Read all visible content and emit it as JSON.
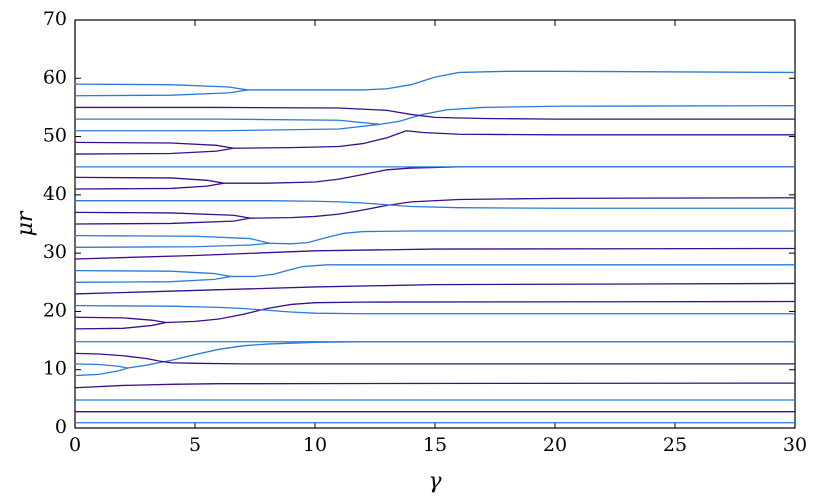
{
  "chart_data": {
    "type": "line",
    "xlabel": "γ",
    "ylabel": "μr",
    "xlim": [
      0,
      30
    ],
    "ylim": [
      0,
      70
    ],
    "xticks": [
      0,
      5,
      10,
      15,
      20,
      25,
      30
    ],
    "yticks": [
      0,
      10,
      20,
      30,
      40,
      50,
      60,
      70
    ],
    "grid": false,
    "series": [
      {
        "color": "#2a7bd8",
        "x": [
          0,
          30
        ],
        "values": [
          0.9,
          0.9
        ]
      },
      {
        "color": "#3a0e8c",
        "x": [
          0,
          30
        ],
        "values": [
          2.8,
          2.8
        ]
      },
      {
        "color": "#2a7bd8",
        "x": [
          0,
          30
        ],
        "values": [
          4.8,
          4.8
        ]
      },
      {
        "color": "#3a0e8c",
        "x": [
          0,
          2,
          4,
          6,
          30
        ],
        "values": [
          6.9,
          7.3,
          7.5,
          7.6,
          7.7
        ]
      },
      {
        "color": "#2a7bd8",
        "x": [
          0,
          1,
          1.8,
          2.2
        ],
        "values": [
          11,
          10.9,
          10.6,
          10.3
        ]
      },
      {
        "color": "#2a7bd8",
        "x": [
          0,
          1,
          1.8,
          2.2,
          3,
          4,
          5,
          6,
          7,
          8,
          10,
          12,
          30
        ],
        "values": [
          9,
          9.2,
          9.8,
          10.3,
          10.8,
          11.6,
          12.6,
          13.5,
          14.1,
          14.4,
          14.7,
          14.8,
          14.8
        ]
      },
      {
        "color": "#3a0e8c",
        "x": [
          0,
          1,
          2,
          3,
          3.5,
          4,
          5,
          7,
          30
        ],
        "values": [
          12.8,
          12.7,
          12.4,
          11.9,
          11.5,
          11.2,
          11.1,
          11.0,
          11.0
        ]
      },
      {
        "color": "#2a7bd8",
        "x": [
          0,
          30
        ],
        "values": [
          14.8,
          14.8
        ]
      },
      {
        "color": "#3a0e8c",
        "x": [
          0,
          2,
          3.2,
          3.8
        ],
        "values": [
          19,
          18.9,
          18.5,
          18.1
        ]
      },
      {
        "color": "#3a0e8c",
        "x": [
          0,
          2,
          3.2,
          3.8,
          5,
          6,
          7,
          8,
          9,
          10,
          12,
          30
        ],
        "values": [
          17,
          17.1,
          17.6,
          18.1,
          18.3,
          18.7,
          19.5,
          20.5,
          21.2,
          21.5,
          21.6,
          21.7
        ]
      },
      {
        "color": "#2a7bd8",
        "x": [
          0,
          4,
          6,
          7,
          8,
          9,
          10,
          12,
          30
        ],
        "values": [
          21,
          20.9,
          20.7,
          20.5,
          20.2,
          19.9,
          19.7,
          19.6,
          19.6
        ]
      },
      {
        "color": "#3a0e8c",
        "x": [
          0,
          5,
          10,
          15,
          30
        ],
        "values": [
          23,
          23.6,
          24.2,
          24.6,
          24.8
        ]
      },
      {
        "color": "#2a7bd8",
        "x": [
          0,
          4,
          5.8,
          6.5
        ],
        "values": [
          27,
          26.9,
          26.5,
          26
        ]
      },
      {
        "color": "#2a7bd8",
        "x": [
          0,
          4,
          5.8,
          6.5,
          7.5,
          8.3,
          9,
          9.5,
          10.5,
          12,
          30
        ],
        "values": [
          25,
          25.1,
          25.5,
          26,
          26,
          26.4,
          27.2,
          27.7,
          28,
          28,
          28
        ]
      },
      {
        "color": "#3a0e8c",
        "x": [
          0,
          5,
          10,
          15,
          30
        ],
        "values": [
          29,
          29.6,
          30.4,
          30.7,
          30.8
        ]
      },
      {
        "color": "#2a7bd8",
        "x": [
          0,
          5,
          7.3,
          8.1
        ],
        "values": [
          33,
          32.9,
          32.5,
          31.7
        ]
      },
      {
        "color": "#2a7bd8",
        "x": [
          0,
          5,
          7.3,
          8.1,
          9,
          9.7,
          10.5,
          11.2,
          12,
          14,
          30
        ],
        "values": [
          31,
          31.1,
          31.4,
          31.7,
          31.6,
          31.8,
          32.7,
          33.4,
          33.7,
          33.8,
          33.8
        ]
      },
      {
        "color": "#3a0e8c",
        "x": [
          0,
          4,
          6.6,
          7.3
        ],
        "values": [
          37,
          36.9,
          36.5,
          36
        ]
      },
      {
        "color": "#3a0e8c",
        "x": [
          0,
          4,
          6.6,
          7.3,
          9,
          10,
          11,
          12,
          13,
          14,
          16,
          20,
          30
        ],
        "values": [
          35,
          35.1,
          35.5,
          36,
          36.1,
          36.3,
          36.7,
          37.4,
          38.2,
          38.8,
          39.2,
          39.4,
          39.5
        ]
      },
      {
        "color": "#2a7bd8",
        "x": [
          0,
          8,
          10,
          11,
          12,
          13,
          14,
          16,
          20,
          30
        ],
        "values": [
          39,
          39,
          38.9,
          38.8,
          38.6,
          38.3,
          38,
          37.8,
          37.7,
          37.7
        ]
      },
      {
        "color": "#3a0e8c",
        "x": [
          0,
          4,
          5.5,
          6.2
        ],
        "values": [
          43,
          42.9,
          42.5,
          42
        ]
      },
      {
        "color": "#3a0e8c",
        "x": [
          0,
          4,
          5.5,
          6.2,
          8,
          10,
          11,
          12,
          13,
          14,
          16,
          30
        ],
        "values": [
          41,
          41.1,
          41.5,
          42,
          42,
          42.2,
          42.7,
          43.5,
          44.3,
          44.6,
          44.8,
          44.8
        ]
      },
      {
        "color": "#2a7bd8",
        "x": [
          0,
          30
        ],
        "values": [
          44.8,
          44.8
        ]
      },
      {
        "color": "#3a0e8c",
        "x": [
          0,
          4,
          5.9,
          6.6
        ],
        "values": [
          49,
          48.9,
          48.5,
          48
        ]
      },
      {
        "color": "#3a0e8c",
        "x": [
          0,
          4,
          5.9,
          6.6,
          9,
          11,
          12,
          13,
          13.8,
          14.5,
          16,
          20,
          30
        ],
        "values": [
          47,
          47.1,
          47.5,
          48,
          48.1,
          48.3,
          48.8,
          49.8,
          51,
          50.7,
          50.4,
          50.3,
          50.3
        ]
      },
      {
        "color": "#2a7bd8",
        "x": [
          0,
          6,
          11,
          12.7
        ],
        "values": [
          53,
          53,
          52.8,
          52.1
        ]
      },
      {
        "color": "#2a7bd8",
        "x": [
          0,
          6,
          11,
          12.7,
          13.5,
          14.5,
          15.5,
          17,
          20,
          30
        ],
        "values": [
          51,
          51,
          51.3,
          52.1,
          52.6,
          53.8,
          54.6,
          55,
          55.2,
          55.3
        ]
      },
      {
        "color": "#3a0e8c",
        "x": [
          0,
          6,
          11,
          13,
          14,
          15,
          17,
          20,
          30
        ],
        "values": [
          55,
          55,
          54.9,
          54.5,
          53.8,
          53.3,
          53.1,
          53,
          53
        ]
      },
      {
        "color": "#2a7bd8",
        "x": [
          0,
          4,
          6.4,
          7.2
        ],
        "values": [
          59,
          58.9,
          58.5,
          58
        ]
      },
      {
        "color": "#2a7bd8",
        "x": [
          0,
          4,
          6.4,
          7.2,
          9,
          12,
          13,
          14,
          15,
          16,
          18,
          20,
          30
        ],
        "values": [
          57,
          57.1,
          57.5,
          58,
          58,
          58,
          58.2,
          58.9,
          60.2,
          61,
          61.2,
          61.2,
          61
        ]
      }
    ]
  }
}
